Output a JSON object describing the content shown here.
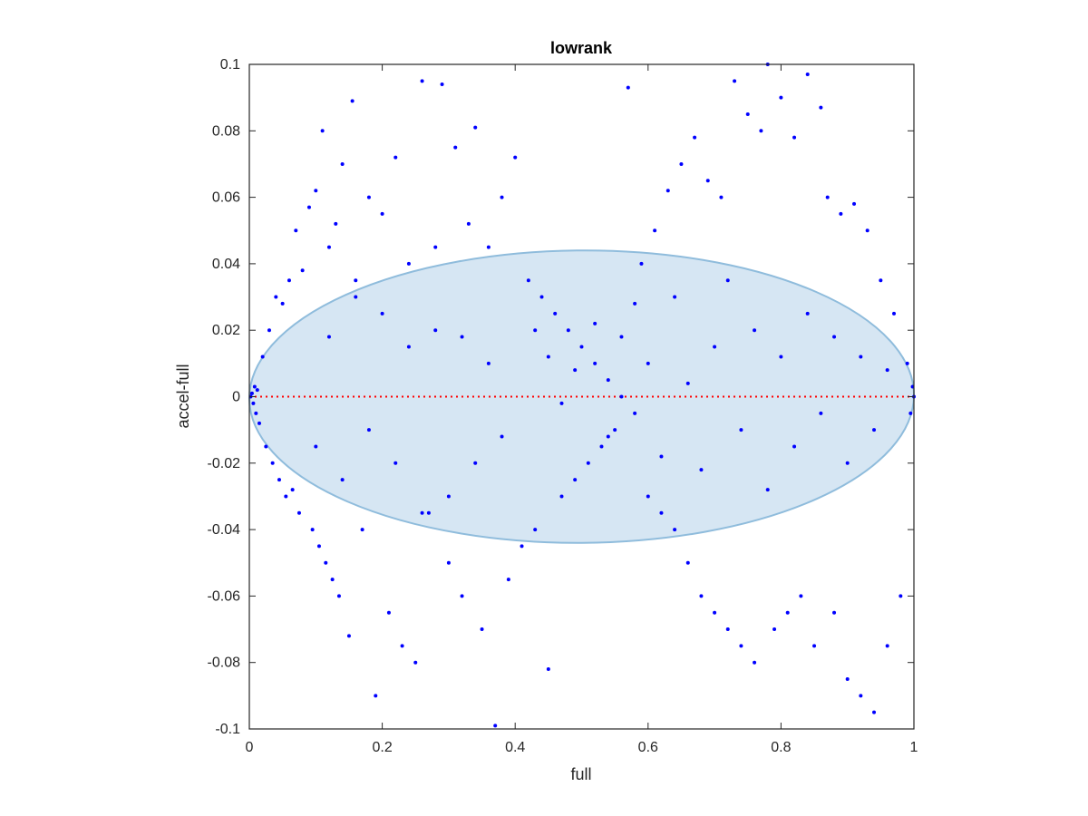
{
  "chart_data": {
    "type": "scatter",
    "title": "lowrank",
    "xlabel": "full",
    "ylabel": "accel-full",
    "xlim": [
      0,
      1
    ],
    "ylim": [
      -0.1,
      0.1
    ],
    "xticks": [
      "0",
      "0.2",
      "0.4",
      "0.6",
      "0.8",
      "1"
    ],
    "yticks": [
      "-0.1",
      "-0.08",
      "-0.06",
      "-0.04",
      "-0.02",
      "0",
      "0.02",
      "0.04",
      "0.06",
      "0.08",
      "0.1"
    ],
    "grid": false,
    "point_color": "#0000ff",
    "reference_line": {
      "y": 0,
      "color": "#ff0000",
      "style": "dotted"
    },
    "ellipse": {
      "center_x": 0.5,
      "center_y": 0.0,
      "semi_axis_x": 0.5,
      "semi_axis_y": 0.044,
      "rotation_deg": -0.35,
      "fill": "#d6e6f3",
      "stroke": "#8fbcdc"
    },
    "points": [
      [
        0.004,
        0.001
      ],
      [
        0.006,
        -0.002
      ],
      [
        0.008,
        0.003
      ],
      [
        0.01,
        -0.005
      ],
      [
        0.012,
        0.002
      ],
      [
        0.015,
        -0.008
      ],
      [
        0.002,
        0.0
      ],
      [
        0.02,
        0.012
      ],
      [
        0.025,
        -0.015
      ],
      [
        0.03,
        0.02
      ],
      [
        0.035,
        -0.02
      ],
      [
        0.04,
        0.03
      ],
      [
        0.045,
        -0.025
      ],
      [
        0.05,
        0.028
      ],
      [
        0.055,
        -0.03
      ],
      [
        0.06,
        0.035
      ],
      [
        0.065,
        -0.028
      ],
      [
        0.07,
        0.05
      ],
      [
        0.075,
        -0.035
      ],
      [
        0.08,
        0.038
      ],
      [
        0.09,
        0.057
      ],
      [
        0.095,
        -0.04
      ],
      [
        0.1,
        0.062
      ],
      [
        0.105,
        -0.045
      ],
      [
        0.11,
        0.08
      ],
      [
        0.115,
        -0.05
      ],
      [
        0.12,
        0.045
      ],
      [
        0.125,
        -0.055
      ],
      [
        0.13,
        0.052
      ],
      [
        0.135,
        -0.06
      ],
      [
        0.14,
        0.07
      ],
      [
        0.15,
        -0.072
      ],
      [
        0.155,
        0.089
      ],
      [
        0.16,
        0.035
      ],
      [
        0.17,
        -0.04
      ],
      [
        0.18,
        0.06
      ],
      [
        0.19,
        -0.09
      ],
      [
        0.2,
        0.055
      ],
      [
        0.21,
        -0.065
      ],
      [
        0.22,
        0.072
      ],
      [
        0.23,
        -0.075
      ],
      [
        0.24,
        0.04
      ],
      [
        0.25,
        -0.08
      ],
      [
        0.26,
        0.095
      ],
      [
        0.27,
        -0.035
      ],
      [
        0.28,
        0.045
      ],
      [
        0.29,
        0.094
      ],
      [
        0.3,
        -0.05
      ],
      [
        0.31,
        0.075
      ],
      [
        0.32,
        -0.06
      ],
      [
        0.33,
        0.052
      ],
      [
        0.34,
        0.081
      ],
      [
        0.35,
        -0.07
      ],
      [
        0.36,
        0.045
      ],
      [
        0.37,
        -0.099
      ],
      [
        0.38,
        0.06
      ],
      [
        0.39,
        -0.055
      ],
      [
        0.4,
        0.072
      ],
      [
        0.41,
        -0.045
      ],
      [
        0.42,
        0.035
      ],
      [
        0.43,
        -0.04
      ],
      [
        0.44,
        0.03
      ],
      [
        0.45,
        -0.082
      ],
      [
        0.46,
        0.025
      ],
      [
        0.47,
        -0.03
      ],
      [
        0.48,
        0.02
      ],
      [
        0.49,
        -0.025
      ],
      [
        0.5,
        0.015
      ],
      [
        0.51,
        -0.02
      ],
      [
        0.52,
        0.01
      ],
      [
        0.53,
        -0.015
      ],
      [
        0.54,
        0.005
      ],
      [
        0.55,
        -0.01
      ],
      [
        0.56,
        0.0
      ],
      [
        0.57,
        0.093
      ],
      [
        0.58,
        -0.005
      ],
      [
        0.59,
        0.04
      ],
      [
        0.6,
        -0.03
      ],
      [
        0.61,
        0.05
      ],
      [
        0.62,
        -0.035
      ],
      [
        0.63,
        0.062
      ],
      [
        0.64,
        -0.04
      ],
      [
        0.65,
        0.07
      ],
      [
        0.66,
        -0.05
      ],
      [
        0.67,
        0.078
      ],
      [
        0.68,
        -0.06
      ],
      [
        0.69,
        0.065
      ],
      [
        0.7,
        -0.065
      ],
      [
        0.71,
        0.06
      ],
      [
        0.72,
        -0.07
      ],
      [
        0.73,
        0.095
      ],
      [
        0.74,
        -0.075
      ],
      [
        0.75,
        0.085
      ],
      [
        0.76,
        -0.08
      ],
      [
        0.77,
        0.08
      ],
      [
        0.78,
        0.1
      ],
      [
        0.79,
        -0.07
      ],
      [
        0.8,
        0.09
      ],
      [
        0.81,
        -0.065
      ],
      [
        0.82,
        0.078
      ],
      [
        0.83,
        -0.06
      ],
      [
        0.84,
        0.097
      ],
      [
        0.85,
        -0.075
      ],
      [
        0.86,
        0.087
      ],
      [
        0.87,
        0.06
      ],
      [
        0.88,
        -0.065
      ],
      [
        0.89,
        0.055
      ],
      [
        0.9,
        -0.085
      ],
      [
        0.91,
        0.058
      ],
      [
        0.92,
        -0.09
      ],
      [
        0.93,
        0.05
      ],
      [
        0.94,
        -0.095
      ],
      [
        0.95,
        0.035
      ],
      [
        0.96,
        -0.075
      ],
      [
        0.97,
        0.025
      ],
      [
        0.98,
        -0.06
      ],
      [
        0.99,
        0.01
      ],
      [
        0.995,
        -0.005
      ],
      [
        0.998,
        0.003
      ],
      [
        1.0,
        0.0
      ],
      [
        0.43,
        0.02
      ],
      [
        0.45,
        0.012
      ],
      [
        0.47,
        -0.002
      ],
      [
        0.49,
        0.008
      ],
      [
        0.52,
        0.022
      ],
      [
        0.54,
        -0.012
      ],
      [
        0.56,
        0.018
      ],
      [
        0.58,
        0.028
      ],
      [
        0.6,
        0.01
      ],
      [
        0.62,
        -0.018
      ],
      [
        0.64,
        0.03
      ],
      [
        0.66,
        0.004
      ],
      [
        0.68,
        -0.022
      ],
      [
        0.7,
        0.015
      ],
      [
        0.72,
        0.035
      ],
      [
        0.74,
        -0.01
      ],
      [
        0.76,
        0.02
      ],
      [
        0.78,
        -0.028
      ],
      [
        0.8,
        0.012
      ],
      [
        0.82,
        -0.015
      ],
      [
        0.84,
        0.025
      ],
      [
        0.86,
        -0.005
      ],
      [
        0.88,
        0.018
      ],
      [
        0.9,
        -0.02
      ],
      [
        0.92,
        0.012
      ],
      [
        0.94,
        -0.01
      ],
      [
        0.96,
        0.008
      ],
      [
        0.38,
        -0.012
      ],
      [
        0.36,
        0.01
      ],
      [
        0.34,
        -0.02
      ],
      [
        0.32,
        0.018
      ],
      [
        0.3,
        -0.03
      ],
      [
        0.28,
        0.02
      ],
      [
        0.26,
        -0.035
      ],
      [
        0.24,
        0.015
      ],
      [
        0.22,
        -0.02
      ],
      [
        0.2,
        0.025
      ],
      [
        0.18,
        -0.01
      ],
      [
        0.16,
        0.03
      ],
      [
        0.14,
        -0.025
      ],
      [
        0.12,
        0.018
      ],
      [
        0.1,
        -0.015
      ]
    ]
  }
}
